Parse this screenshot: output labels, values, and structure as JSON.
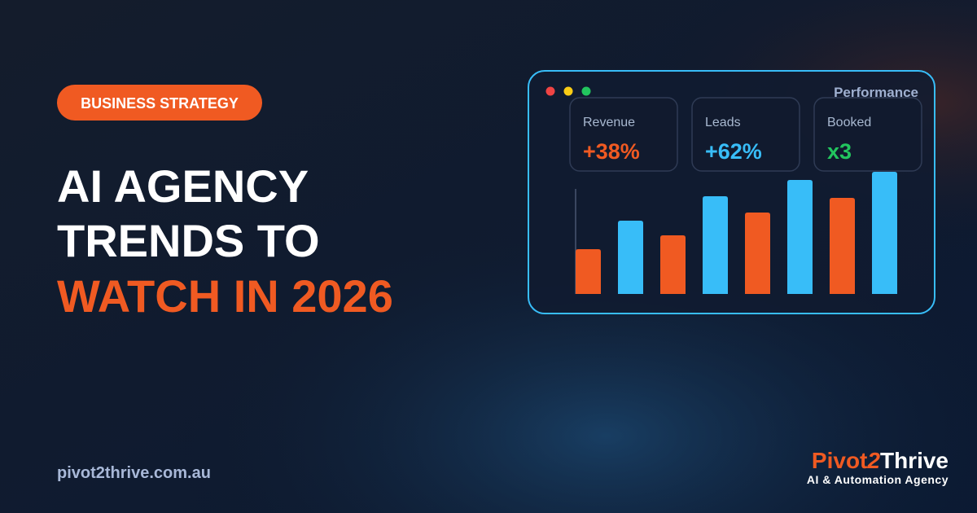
{
  "badge": "BUSINESS STRATEGY",
  "title": {
    "lines": [
      "AI AGENCY",
      "TRENDS TO",
      "WATCH IN 2026"
    ]
  },
  "url": "pivot2thrive.com.au",
  "logo": {
    "parts": [
      "Pivot",
      "2",
      "Thrive"
    ],
    "tagline": "AI & Automation Agency"
  },
  "dashboard": {
    "title": "Performance",
    "cards": [
      {
        "label": "Revenue",
        "value": "+38%",
        "color": "#f05a22"
      },
      {
        "label": "Leads",
        "value": "+62%",
        "color": "#38bdf8"
      },
      {
        "label": "Booked",
        "value": "x3",
        "color": "#22c55e"
      }
    ],
    "chart": {
      "type": "bar",
      "values": [
        55,
        90,
        72,
        120,
        100,
        140,
        118,
        150
      ],
      "colors": [
        "#f05a22",
        "#38bdf8",
        "#f05a22",
        "#38bdf8",
        "#f05a22",
        "#38bdf8",
        "#f05a22",
        "#38bdf8"
      ]
    }
  }
}
